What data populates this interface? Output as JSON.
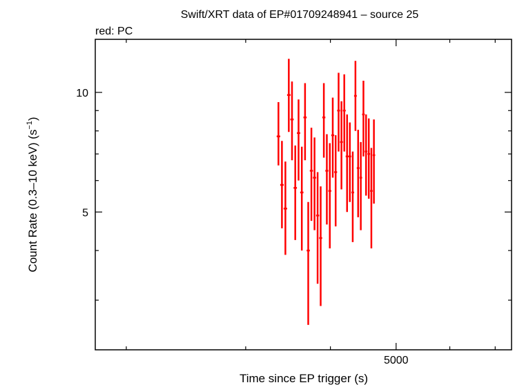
{
  "chart_data": {
    "type": "scatter",
    "title": "Swift/XRT data of EP#01709248941 – source 25",
    "subtitle": "red: PC",
    "xlabel": "Time since EP trigger (s)",
    "ylabel_main": "Count Rate (0.3–10 keV) (s",
    "ylabel_sup": "−1",
    "ylabel_close": ")",
    "x_scale": "log",
    "y_scale": "log",
    "xlim": [
      1800,
      7400
    ],
    "ylim": [
      2.25,
      13.6
    ],
    "x_major_ticks": [
      {
        "value": 5000,
        "label": "5000"
      }
    ],
    "x_minor_ticks": [
      2000,
      3000,
      4000,
      6000,
      7000
    ],
    "y_major_ticks": [
      {
        "value": 5,
        "label": "5"
      },
      {
        "value": 10,
        "label": "10"
      }
    ],
    "y_minor_ticks": [
      3,
      4,
      6,
      7,
      8,
      9
    ],
    "series": [
      {
        "color": "#ff0000",
        "points": [
          {
            "x": 3353,
            "xerr": 20,
            "y": 7.75,
            "yerr": [
              1.2,
              1.7
            ]
          },
          {
            "x": 3393,
            "xerr": 20,
            "y": 5.85,
            "yerr": [
              1.3,
              1.7
            ]
          },
          {
            "x": 3433,
            "xerr": 20,
            "y": 5.1,
            "yerr": [
              1.2,
              1.6
            ]
          },
          {
            "x": 3473,
            "xerr": 20,
            "y": 9.85,
            "yerr": [
              1.9,
              2.3
            ]
          },
          {
            "x": 3511,
            "xerr": 20,
            "y": 8.55,
            "yerr": [
              1.8,
              2.1
            ]
          },
          {
            "x": 3550,
            "xerr": 20,
            "y": 5.75,
            "yerr": [
              1.5,
              1.6
            ]
          },
          {
            "x": 3590,
            "xerr": 20,
            "y": 7.9,
            "yerr": [
              1.9,
              1.7
            ]
          },
          {
            "x": 3630,
            "xerr": 20,
            "y": 5.6,
            "yerr": [
              1.6,
              1.7
            ]
          },
          {
            "x": 3670,
            "xerr": 20,
            "y": 8.65,
            "yerr": [
              1.9,
              1.9
            ]
          },
          {
            "x": 3710,
            "xerr": 20,
            "y": 4.0,
            "yerr": [
              1.4,
              1.3
            ]
          },
          {
            "x": 3750,
            "xerr": 20,
            "y": 6.35,
            "yerr": [
              1.6,
              1.8
            ]
          },
          {
            "x": 3790,
            "xerr": 20,
            "y": 6.1,
            "yerr": [
              1.6,
              1.6
            ]
          },
          {
            "x": 3830,
            "xerr": 20,
            "y": 4.9,
            "yerr": [
              1.6,
              1.4
            ]
          },
          {
            "x": 3870,
            "xerr": 20,
            "y": 4.3,
            "yerr": [
              1.4,
              1.5
            ]
          },
          {
            "x": 3912,
            "xerr": 20,
            "y": 8.65,
            "yerr": [
              1.8,
              1.9
            ]
          },
          {
            "x": 3952,
            "xerr": 20,
            "y": 6.35,
            "yerr": [
              1.7,
              1.5
            ]
          },
          {
            "x": 3992,
            "xerr": 20,
            "y": 5.65,
            "yerr": [
              1.6,
              1.8
            ]
          },
          {
            "x": 4032,
            "xerr": 20,
            "y": 7.8,
            "yerr": [
              1.7,
              1.9
            ]
          },
          {
            "x": 4072,
            "xerr": 20,
            "y": 6.3,
            "yerr": [
              1.7,
              1.5
            ]
          },
          {
            "x": 4113,
            "xerr": 20,
            "y": 9.0,
            "yerr": [
              1.9,
              2.2
            ]
          },
          {
            "x": 4153,
            "xerr": 20,
            "y": 7.5,
            "yerr": [
              1.8,
              2.0
            ]
          },
          {
            "x": 4193,
            "xerr": 20,
            "y": 9.0,
            "yerr": [
              1.9,
              2.1
            ]
          },
          {
            "x": 4233,
            "xerr": 20,
            "y": 6.9,
            "yerr": [
              1.9,
              1.9
            ]
          },
          {
            "x": 4273,
            "xerr": 20,
            "y": 6.9,
            "yerr": [
              1.6,
              1.5
            ]
          },
          {
            "x": 4315,
            "xerr": 20,
            "y": 5.6,
            "yerr": [
              1.4,
              1.5
            ]
          },
          {
            "x": 4355,
            "xerr": 20,
            "y": 9.8,
            "yerr": [
              1.8,
              2.2
            ]
          },
          {
            "x": 4395,
            "xerr": 20,
            "y": 6.45,
            "yerr": [
              1.6,
              1.6
            ]
          },
          {
            "x": 4435,
            "xerr": 20,
            "y": 6.1,
            "yerr": [
              1.6,
              1.4
            ]
          },
          {
            "x": 4475,
            "xerr": 20,
            "y": 8.8,
            "yerr": [
              1.9,
              1.9
            ]
          },
          {
            "x": 4515,
            "xerr": 20,
            "y": 7.1,
            "yerr": [
              1.6,
              1.7
            ]
          },
          {
            "x": 4557,
            "xerr": 20,
            "y": 7.0,
            "yerr": [
              1.6,
              1.6
            ]
          },
          {
            "x": 4597,
            "xerr": 20,
            "y": 5.65,
            "yerr": [
              1.6,
              1.6
            ]
          },
          {
            "x": 4637,
            "xerr": 20,
            "y": 6.95,
            "yerr": [
              1.7,
              1.6
            ]
          }
        ]
      }
    ]
  }
}
